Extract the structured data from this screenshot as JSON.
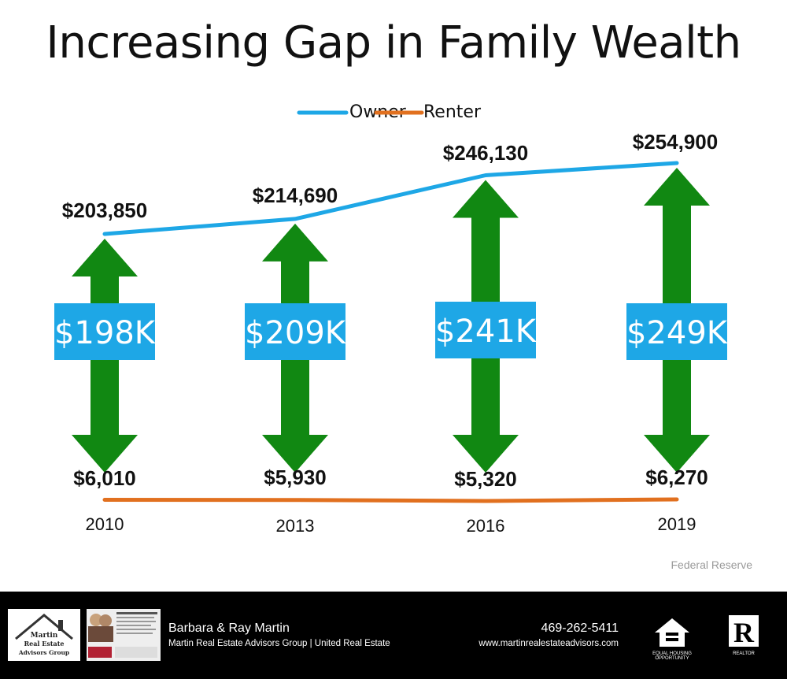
{
  "title": "Increasing Gap in Family Wealth",
  "source": "Federal Reserve",
  "chart_data": {
    "type": "line",
    "title": "Increasing Gap in Family Wealth",
    "categories": [
      "2010",
      "2013",
      "2016",
      "2019"
    ],
    "series": [
      {
        "name": "Owner",
        "values": [
          203850,
          214690,
          246130,
          254900
        ],
        "labels": [
          "$203,850",
          "$214,690",
          "$246,130",
          "$254,900"
        ],
        "color": "#1ea7e6"
      },
      {
        "name": "Renter",
        "values": [
          6010,
          5930,
          5320,
          6270
        ],
        "labels": [
          "$6,010",
          "$5,930",
          "$5,320",
          "$6,270"
        ],
        "color": "#e1701f"
      }
    ],
    "gap_labels": [
      "$198K",
      "$209K",
      "$241K",
      "$249K"
    ],
    "legend": "top-center",
    "ylim": [
      0,
      260000
    ],
    "grid": false
  },
  "colors": {
    "arrow": "#118812",
    "gap_box": "#1ea7e6",
    "owner": "#1ea7e6",
    "renter": "#e1701f"
  },
  "footer": {
    "logo_text": "Martin Real Estate Advisors Group",
    "names": "Barbara & Ray Martin",
    "company": "Martin Real Estate Advisors Group | United Real Estate",
    "phone": "469-262-5411",
    "website": "www.martinrealestateadvisors.com",
    "equal_housing": "EQUAL HOUSING OPPORTUNITY",
    "realtor": "REALTOR"
  }
}
